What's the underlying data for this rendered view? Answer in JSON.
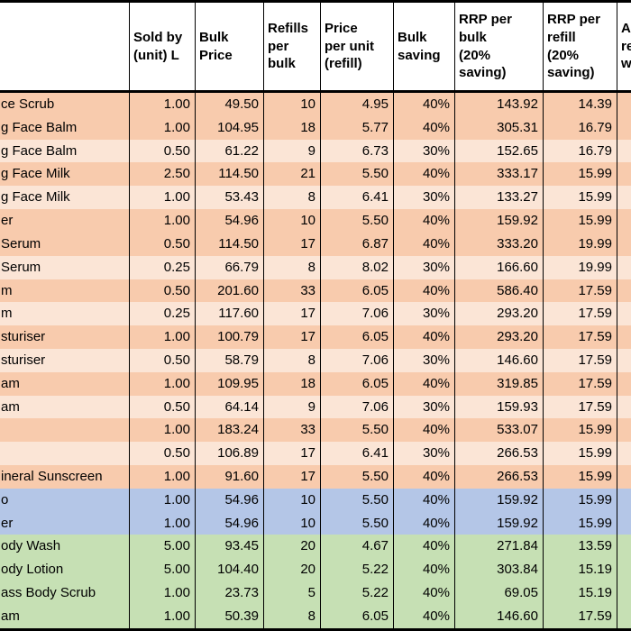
{
  "colors": {
    "row_orange_dark": "#F8CBAD",
    "row_orange_light": "#FBE5D6",
    "row_blue": "#B4C6E7",
    "row_green": "#C6E0B4",
    "header_bg": "#FFFFFF",
    "border": "#000000"
  },
  "table": {
    "columns": [
      {
        "label": ""
      },
      {
        "label": "Sold by\n(unit) L"
      },
      {
        "label": "Bulk\nPrice"
      },
      {
        "label": "Refills\nper\nbulk"
      },
      {
        "label": "Price\nper unit\n(refill)"
      },
      {
        "label": "Bulk\nsaving"
      },
      {
        "label": "RRP per\nbulk\n(20%\nsaving)"
      },
      {
        "label": "RRP per\nrefill\n(20%\nsaving)"
      },
      {
        "label": "A\nre\nw"
      }
    ],
    "rows": [
      {
        "color": "orange-dark",
        "cells": [
          "ce Scrub",
          "1.00",
          "49.50",
          "10",
          "4.95",
          "40%",
          "143.92",
          "14.39"
        ]
      },
      {
        "color": "orange-dark",
        "cells": [
          "g Face Balm",
          "1.00",
          "104.95",
          "18",
          "5.77",
          "40%",
          "305.31",
          "16.79"
        ]
      },
      {
        "color": "orange-light",
        "cells": [
          "g Face Balm",
          "0.50",
          "61.22",
          "9",
          "6.73",
          "30%",
          "152.65",
          "16.79"
        ]
      },
      {
        "color": "orange-dark",
        "cells": [
          "g Face Milk",
          "2.50",
          "114.50",
          "21",
          "5.50",
          "40%",
          "333.17",
          "15.99"
        ]
      },
      {
        "color": "orange-light",
        "cells": [
          "g Face Milk",
          "1.00",
          "53.43",
          "8",
          "6.41",
          "30%",
          "133.27",
          "15.99"
        ]
      },
      {
        "color": "orange-dark",
        "cells": [
          "er",
          "1.00",
          "54.96",
          "10",
          "5.50",
          "40%",
          "159.92",
          "15.99"
        ]
      },
      {
        "color": "orange-dark",
        "cells": [
          "Serum",
          "0.50",
          "114.50",
          "17",
          "6.87",
          "40%",
          "333.20",
          "19.99"
        ]
      },
      {
        "color": "orange-light",
        "cells": [
          "Serum",
          "0.25",
          "66.79",
          "8",
          "8.02",
          "30%",
          "166.60",
          "19.99"
        ]
      },
      {
        "color": "orange-dark",
        "cells": [
          "m",
          "0.50",
          "201.60",
          "33",
          "6.05",
          "40%",
          "586.40",
          "17.59"
        ]
      },
      {
        "color": "orange-light",
        "cells": [
          "m",
          "0.25",
          "117.60",
          "17",
          "7.06",
          "30%",
          "293.20",
          "17.59"
        ]
      },
      {
        "color": "orange-dark",
        "cells": [
          "sturiser",
          "1.00",
          "100.79",
          "17",
          "6.05",
          "40%",
          "293.20",
          "17.59"
        ]
      },
      {
        "color": "orange-light",
        "cells": [
          "sturiser",
          "0.50",
          "58.79",
          "8",
          "7.06",
          "30%",
          "146.60",
          "17.59"
        ]
      },
      {
        "color": "orange-dark",
        "cells": [
          "am",
          "1.00",
          "109.95",
          "18",
          "6.05",
          "40%",
          "319.85",
          "17.59"
        ]
      },
      {
        "color": "orange-light",
        "cells": [
          "am",
          "0.50",
          "64.14",
          "9",
          "7.06",
          "30%",
          "159.93",
          "17.59"
        ]
      },
      {
        "color": "orange-dark",
        "cells": [
          "",
          "1.00",
          "183.24",
          "33",
          "5.50",
          "40%",
          "533.07",
          "15.99"
        ]
      },
      {
        "color": "orange-light",
        "cells": [
          "",
          "0.50",
          "106.89",
          "17",
          "6.41",
          "30%",
          "266.53",
          "15.99"
        ]
      },
      {
        "color": "orange-dark",
        "cells": [
          "ineral Sunscreen",
          "1.00",
          "91.60",
          "17",
          "5.50",
          "40%",
          "266.53",
          "15.99"
        ]
      },
      {
        "color": "blue",
        "cells": [
          "o",
          "1.00",
          "54.96",
          "10",
          "5.50",
          "40%",
          "159.92",
          "15.99"
        ]
      },
      {
        "color": "blue",
        "cells": [
          "er",
          "1.00",
          "54.96",
          "10",
          "5.50",
          "40%",
          "159.92",
          "15.99"
        ]
      },
      {
        "color": "green",
        "cells": [
          "ody Wash",
          "5.00",
          "93.45",
          "20",
          "4.67",
          "40%",
          "271.84",
          "13.59"
        ]
      },
      {
        "color": "green",
        "cells": [
          "ody Lotion",
          "5.00",
          "104.40",
          "20",
          "5.22",
          "40%",
          "303.84",
          "15.19"
        ]
      },
      {
        "color": "green",
        "cells": [
          "ass Body Scrub",
          "1.00",
          "23.73",
          "5",
          "5.22",
          "40%",
          "69.05",
          "15.19"
        ]
      },
      {
        "color": "green",
        "cells": [
          "am",
          "1.00",
          "50.39",
          "8",
          "6.05",
          "40%",
          "146.60",
          "17.59"
        ]
      }
    ]
  }
}
